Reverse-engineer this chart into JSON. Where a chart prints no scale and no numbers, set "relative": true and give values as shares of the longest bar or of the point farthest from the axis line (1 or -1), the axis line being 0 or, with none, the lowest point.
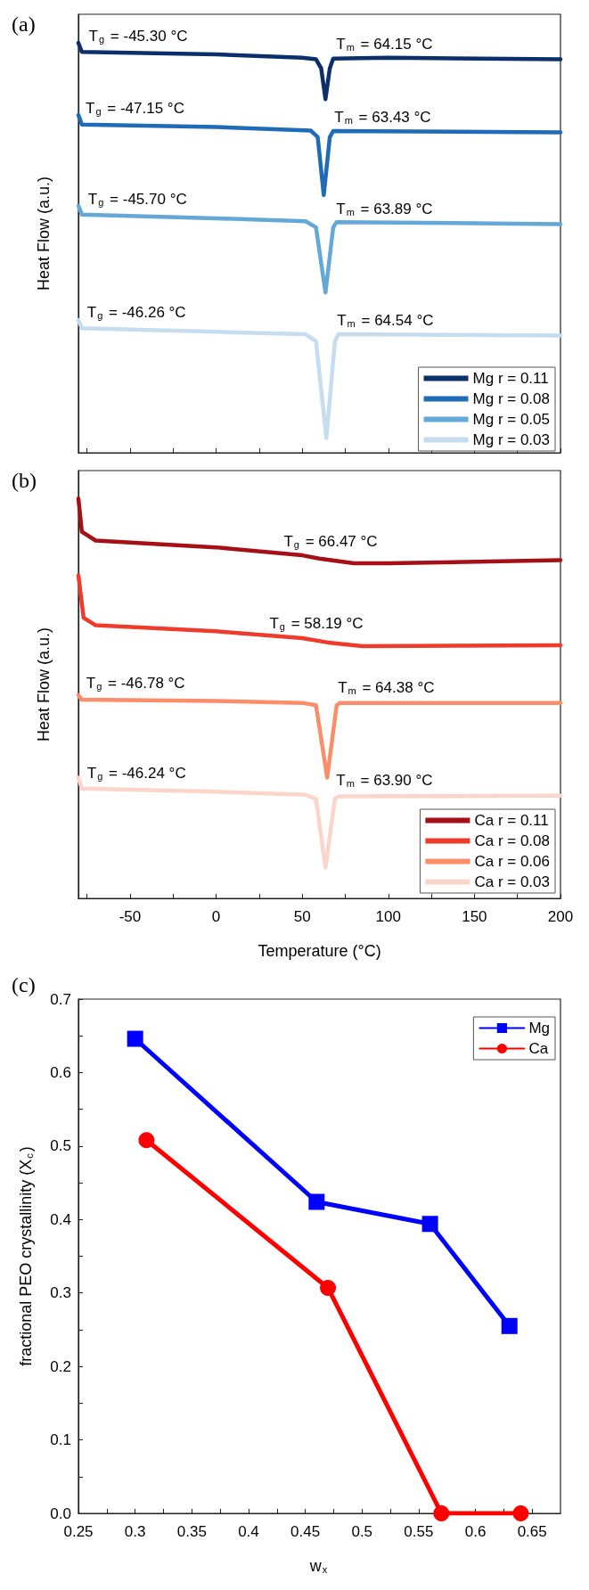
{
  "chart_data": [
    {
      "type": "line",
      "title": "(a)",
      "ylabel": "Heat Flow (a.u.)",
      "relative": true,
      "xlim": [
        -80,
        200
      ],
      "xticks": [
        {
          "value": -75,
          "label": null
        },
        {
          "value": -50,
          "label": null
        },
        {
          "value": -25,
          "label": null
        },
        {
          "value": 0,
          "label": null
        },
        {
          "value": 25,
          "label": null
        },
        {
          "value": 50,
          "label": null
        },
        {
          "value": 75,
          "label": null
        },
        {
          "value": 100,
          "label": null
        },
        {
          "value": 125,
          "label": null
        },
        {
          "value": 150,
          "label": null
        },
        {
          "value": 175,
          "label": null
        },
        {
          "value": 200,
          "label": null
        }
      ],
      "tick_labels": false,
      "legend": "bottom right",
      "grid": false,
      "marker": "none",
      "line_style": "solid",
      "series": [
        {
          "name": "Mg r = 0.11",
          "color": "#0b2f6b",
          "x": [
            -80,
            -78,
            0,
            50,
            58,
            61,
            63.5,
            66,
            68,
            100,
            200
          ],
          "values": [
            1.0,
            0.978,
            0.972,
            0.964,
            0.96,
            0.938,
            0.863,
            0.938,
            0.962,
            0.964,
            0.96
          ]
        },
        {
          "name": "Mg r = 0.08",
          "color": "#1f6bb8",
          "x": [
            -80,
            -78,
            0,
            55,
            59,
            62.5,
            66,
            68,
            200
          ],
          "values": [
            0.824,
            0.801,
            0.795,
            0.786,
            0.77,
            0.629,
            0.77,
            0.785,
            0.782
          ]
        },
        {
          "name": "Mg r = 0.05",
          "color": "#64a8d8",
          "x": [
            -80,
            -78,
            0,
            52,
            58,
            63.5,
            68,
            70,
            200
          ],
          "values": [
            0.603,
            0.581,
            0.572,
            0.565,
            0.55,
            0.391,
            0.55,
            0.563,
            0.558
          ]
        },
        {
          "name": "Mg r = 0.03",
          "color": "#c6dcef",
          "x": [
            -80,
            -78,
            0,
            52,
            58,
            64,
            69,
            71,
            200
          ],
          "values": [
            0.324,
            0.304,
            0.295,
            0.289,
            0.272,
            0.036,
            0.272,
            0.289,
            0.286
          ]
        }
      ],
      "annotations": [
        {
          "text": "T$_{g}$ = -45.30 °C",
          "x": -45.3,
          "y": 0.976
        },
        "T$_{m}$ = 64.15 °C",
        {
          "text": "T$_{g}$ = -47.15 °C",
          "x": -47.15,
          "y": 0.8
        },
        "T$_{m}$ = 63.43 °C",
        {
          "text": "T$_{g}$ = -45.70 °C",
          "x": -45.7,
          "y": 0.578
        },
        "T$_{m}$ = 63.89 °C",
        {
          "text": "T$_{g}$ = -46.26 °C",
          "x": -46.26,
          "y": 0.302
        },
        "T$_{m}$ = 64.54 °C"
      ]
    },
    {
      "type": "line",
      "title": "(b)",
      "xlabel": "Temperature (°C)",
      "ylabel": "Heat Flow (a.u.)",
      "relative": true,
      "xlim": [
        -80,
        200
      ],
      "xticks": [
        {
          "value": -75,
          "label": null
        },
        -50,
        {
          "value": -25,
          "label": null
        },
        0,
        {
          "value": 25,
          "label": null
        },
        50,
        {
          "value": 75,
          "label": null
        },
        100,
        {
          "value": 125,
          "label": null
        },
        150,
        {
          "value": 175,
          "label": null
        },
        200
      ],
      "tick_labels": "x",
      "legend": "bottom right",
      "grid": false,
      "marker": "none",
      "line_style": "solid",
      "series": [
        {
          "name": "Ca r = 0.11",
          "color": "#a50f15",
          "x": [
            -80,
            -78,
            -70,
            0,
            50,
            60,
            80,
            100,
            200
          ],
          "values": [
            1.0,
            0.917,
            0.895,
            0.878,
            0.858,
            0.85,
            0.838,
            0.838,
            0.846
          ]
        },
        {
          "name": "Ca r = 0.08",
          "color": "#ef3b2c",
          "x": [
            -80,
            -77,
            -70,
            0,
            50,
            65,
            85,
            200
          ],
          "values": [
            0.808,
            0.702,
            0.683,
            0.668,
            0.651,
            0.64,
            0.631,
            0.633
          ]
        },
        {
          "name": "Ca r = 0.06",
          "color": "#fc8d6a",
          "x": [
            -80,
            -78,
            0,
            50,
            58,
            64.5,
            70,
            72,
            200
          ],
          "values": [
            0.508,
            0.497,
            0.494,
            0.489,
            0.483,
            0.302,
            0.483,
            0.489,
            0.489
          ]
        },
        {
          "name": "Ca r = 0.03",
          "color": "#fcd5ca",
          "x": [
            -80,
            -78,
            0,
            52,
            58,
            63.5,
            69,
            71,
            200
          ],
          "values": [
            0.302,
            0.275,
            0.267,
            0.259,
            0.249,
            0.077,
            0.249,
            0.255,
            0.257
          ]
        }
      ],
      "annotations": [
        {
          "text": "T$_{g}$ = 66.47 °C",
          "x": 66.47,
          "y": 0.85
        },
        {
          "text": "T$_{g}$ = 58.19 °C",
          "x": 58.19,
          "y": 0.645
        },
        {
          "text": "T$_{g}$ = -46.78 °C",
          "x": -46.78,
          "y": 0.496
        },
        "T$_{m}$ = 64.38 °C",
        {
          "text": "T$_{g}$ = -46.24 °C",
          "x": -46.24,
          "y": 0.271
        },
        "T$_{m}$ = 63.90 °C"
      ]
    },
    {
      "type": "line",
      "title": "(c)",
      "xlabel": "w$_{x}$",
      "ylabel": "fractional PEO crystallinity (X$_{c}$)",
      "xlim": [
        0.25,
        0.675
      ],
      "xticks": [
        0.25,
        {
          "value": 0.275,
          "label": null
        },
        0.3,
        {
          "value": 0.325,
          "label": null
        },
        0.35,
        {
          "value": 0.375,
          "label": null
        },
        0.4,
        {
          "value": 0.425,
          "label": null
        },
        0.45,
        {
          "value": 0.475,
          "label": null
        },
        0.5,
        {
          "value": 0.525,
          "label": null
        },
        0.55,
        {
          "value": 0.575,
          "label": null
        },
        0.6,
        {
          "value": 0.625,
          "label": null
        },
        0.65
      ],
      "ylim": [
        0,
        0.7
      ],
      "yticks": [
        {
          "value": 0,
          "label": "0.0"
        },
        {
          "value": 0.05,
          "label": null
        },
        0.1,
        {
          "value": 0.15,
          "label": null
        },
        0.2,
        {
          "value": 0.25,
          "label": null
        },
        0.3,
        {
          "value": 0.35,
          "label": null
        },
        0.4,
        {
          "value": 0.45,
          "label": null
        },
        0.5,
        {
          "value": 0.55,
          "label": null
        },
        0.6,
        {
          "value": 0.65,
          "label": null
        },
        0.7
      ],
      "legend": "top right",
      "grid": false,
      "line_style": "solid",
      "series": [
        {
          "name": "Mg",
          "color": "#0000ff",
          "marker": "square",
          "x": [
            0.3,
            0.46,
            0.56,
            0.63
          ],
          "values": [
            0.646,
            0.424,
            0.394,
            0.255
          ]
        },
        {
          "name": "Ca",
          "color": "#ff0000",
          "marker": "circle",
          "x": [
            0.31,
            0.47,
            0.57,
            0.64
          ],
          "values": [
            0.508,
            0.307,
            0,
            0
          ]
        }
      ]
    }
  ]
}
